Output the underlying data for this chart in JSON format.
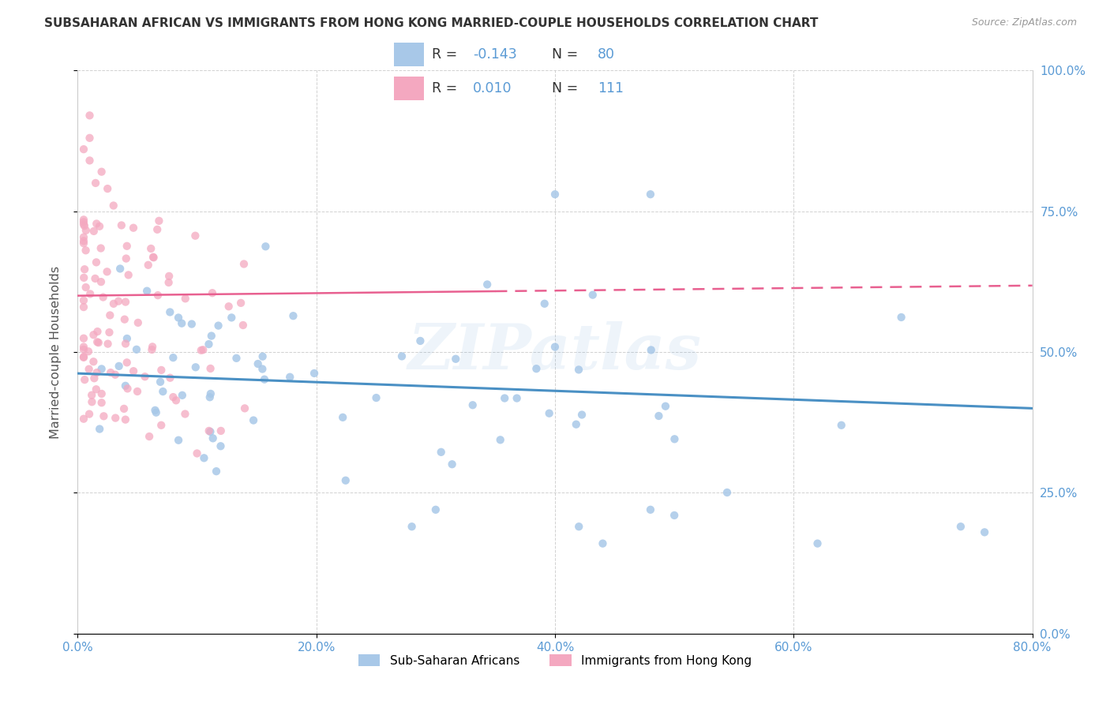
{
  "title": "SUBSAHARAN AFRICAN VS IMMIGRANTS FROM HONG KONG MARRIED-COUPLE HOUSEHOLDS CORRELATION CHART",
  "source": "Source: ZipAtlas.com",
  "ylabel": "Married-couple Households",
  "x_tick_labels": [
    "0.0%",
    "20.0%",
    "40.0%",
    "60.0%",
    "80.0%"
  ],
  "x_tick_values": [
    0.0,
    0.2,
    0.4,
    0.6,
    0.8
  ],
  "y_tick_labels": [
    "0.0%",
    "25.0%",
    "50.0%",
    "75.0%",
    "100.0%"
  ],
  "y_tick_values": [
    0.0,
    0.25,
    0.5,
    0.75,
    1.0
  ],
  "xlim": [
    0.0,
    0.8
  ],
  "ylim": [
    0.0,
    1.0
  ],
  "blue_color": "#A8C8E8",
  "pink_color": "#F4A8C0",
  "blue_line_color": "#4A90C4",
  "pink_line_color": "#E86090",
  "blue_R": -0.143,
  "blue_N": 80,
  "pink_R": 0.01,
  "pink_N": 111,
  "legend_label_blue": "Sub-Saharan Africans",
  "legend_label_pink": "Immigrants from Hong Kong",
  "watermark": "ZIPatlas",
  "blue_trend_x": [
    0.0,
    0.8
  ],
  "blue_trend_y": [
    0.462,
    0.4
  ],
  "pink_trend_x": [
    0.0,
    0.8
  ],
  "pink_trend_y": [
    0.6,
    0.618
  ]
}
